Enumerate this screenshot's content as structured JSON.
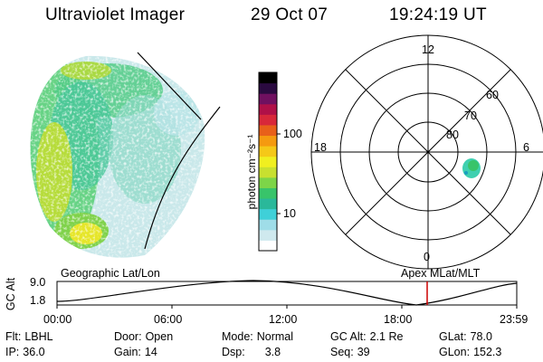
{
  "header": {
    "instrument": "Ultraviolet Imager",
    "date": "29 Oct 07",
    "time": "19:24:19 UT"
  },
  "colorbar": {
    "label": "photon cm⁻²s⁻¹",
    "ticks": [
      "100",
      "10"
    ],
    "scale": "log",
    "colors": [
      "#ffffff",
      "#cfe9ee",
      "#9fdde8",
      "#3fd0d8",
      "#2ab89a",
      "#38c46a",
      "#7dd548",
      "#c8e030",
      "#f0ef20",
      "#f5c818",
      "#f59a10",
      "#e8601a",
      "#d8283a",
      "#b01048",
      "#701060",
      "#2a0a40",
      "#000000"
    ]
  },
  "polar": {
    "hour_labels": [
      "12",
      "18",
      "6",
      "0"
    ],
    "lat_labels": [
      "60",
      "70",
      "80"
    ]
  },
  "altitude_plot": {
    "ylabel": "GC Alt",
    "yticks": [
      "9.0",
      "1.8"
    ],
    "left_title": "Geographic Lat/Lon",
    "right_title": "Apex MLat/MLT",
    "xticks": [
      "00:00",
      "06:00",
      "12:00",
      "18:00",
      "23:59"
    ],
    "marker_color": "#cc0000"
  },
  "info": {
    "row1": [
      {
        "k": "Flt:",
        "v": "LBHL"
      },
      {
        "k": "Door:",
        "v": "Open"
      },
      {
        "k": "Mode:",
        "v": "Normal"
      },
      {
        "k": "GC Alt:",
        "v": "2.1 Re"
      },
      {
        "k": "GLat:",
        "v": "78.0"
      }
    ],
    "row2": [
      {
        "k": "IP:",
        "v": "36.0"
      },
      {
        "k": "Gain:",
        "v": "14"
      },
      {
        "k": "Dsp:",
        "v": "3.8"
      },
      {
        "k": "Seq:",
        "v": "39"
      },
      {
        "k": "GLon:",
        "v": "152.3"
      }
    ]
  }
}
